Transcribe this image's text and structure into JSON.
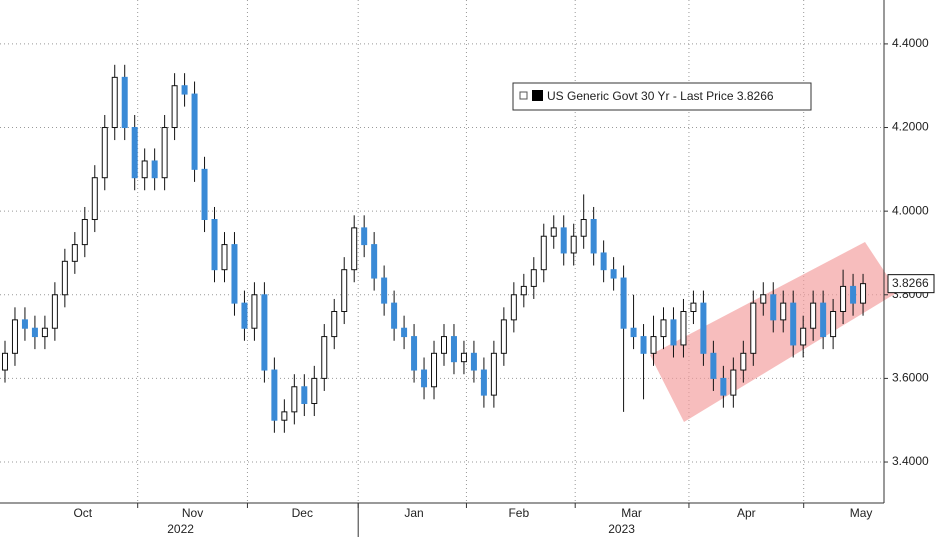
{
  "chart_data": {
    "type": "candlestick",
    "legend": "US Generic Govt 30 Yr - Last Price 3.8266",
    "last_price": 3.8266,
    "up_color": "#ffffff",
    "down_color": "#3a8ad6",
    "ylim": [
      3.302,
      4.505
    ],
    "yticks": [
      {
        "value": 3.4,
        "label": "3.4000"
      },
      {
        "value": 3.6,
        "label": "3.6000"
      },
      {
        "value": 3.8,
        "label": "3.8000"
      },
      {
        "value": 4.0,
        "label": "4.0000"
      },
      {
        "value": 4.2,
        "label": "4.2000"
      },
      {
        "value": 4.4,
        "label": "4.4000"
      }
    ],
    "xticks": [
      {
        "value": 7.8,
        "label": "Oct"
      },
      {
        "value": 18.8,
        "label": "Nov"
      },
      {
        "value": 29.8,
        "label": "Dec"
      },
      {
        "value": 41,
        "label": "Jan"
      },
      {
        "value": 51.5,
        "label": "Feb"
      },
      {
        "value": 62.8,
        "label": "Mar"
      },
      {
        "value": 74.3,
        "label": "Apr"
      },
      {
        "value": 85.8,
        "label": "May"
      }
    ],
    "year_labels": [
      {
        "value": 17.6,
        "label": "2022"
      },
      {
        "value": 61.8,
        "label": "2023"
      }
    ],
    "grid": true,
    "candles": [
      [
        3.62,
        3.69,
        3.59,
        3.66
      ],
      [
        3.66,
        3.77,
        3.63,
        3.74
      ],
      [
        3.74,
        3.77,
        3.69,
        3.72
      ],
      [
        3.72,
        3.75,
        3.67,
        3.7
      ],
      [
        3.7,
        3.75,
        3.67,
        3.72
      ],
      [
        3.72,
        3.83,
        3.69,
        3.8
      ],
      [
        3.8,
        3.91,
        3.77,
        3.88
      ],
      [
        3.88,
        3.95,
        3.85,
        3.92
      ],
      [
        3.92,
        4.01,
        3.89,
        3.98
      ],
      [
        3.98,
        4.11,
        3.95,
        4.08
      ],
      [
        4.08,
        4.23,
        4.05,
        4.2
      ],
      [
        4.2,
        4.35,
        4.17,
        4.32
      ],
      [
        4.32,
        4.35,
        4.17,
        4.2
      ],
      [
        4.2,
        4.23,
        4.05,
        4.08
      ],
      [
        4.08,
        4.15,
        4.05,
        4.12
      ],
      [
        4.12,
        4.15,
        4.05,
        4.08
      ],
      [
        4.08,
        4.23,
        4.05,
        4.2
      ],
      [
        4.2,
        4.33,
        4.17,
        4.3
      ],
      [
        4.3,
        4.33,
        4.25,
        4.28
      ],
      [
        4.28,
        4.31,
        4.07,
        4.1
      ],
      [
        4.1,
        4.13,
        3.95,
        3.98
      ],
      [
        3.98,
        4.01,
        3.83,
        3.86
      ],
      [
        3.86,
        3.95,
        3.83,
        3.92
      ],
      [
        3.92,
        3.95,
        3.75,
        3.78
      ],
      [
        3.78,
        3.81,
        3.69,
        3.72
      ],
      [
        3.72,
        3.83,
        3.69,
        3.8
      ],
      [
        3.8,
        3.83,
        3.59,
        3.62
      ],
      [
        3.62,
        3.65,
        3.47,
        3.5
      ],
      [
        3.5,
        3.55,
        3.47,
        3.52
      ],
      [
        3.52,
        3.61,
        3.49,
        3.58
      ],
      [
        3.58,
        3.61,
        3.51,
        3.54
      ],
      [
        3.54,
        3.63,
        3.51,
        3.6
      ],
      [
        3.6,
        3.73,
        3.57,
        3.7
      ],
      [
        3.7,
        3.79,
        3.67,
        3.76
      ],
      [
        3.76,
        3.89,
        3.73,
        3.86
      ],
      [
        3.86,
        3.99,
        3.83,
        3.96
      ],
      [
        3.96,
        3.99,
        3.89,
        3.92
      ],
      [
        3.92,
        3.95,
        3.81,
        3.84
      ],
      [
        3.84,
        3.87,
        3.75,
        3.78
      ],
      [
        3.78,
        3.81,
        3.69,
        3.72
      ],
      [
        3.72,
        3.75,
        3.67,
        3.7
      ],
      [
        3.7,
        3.73,
        3.59,
        3.62
      ],
      [
        3.62,
        3.65,
        3.55,
        3.58
      ],
      [
        3.58,
        3.69,
        3.55,
        3.66
      ],
      [
        3.66,
        3.73,
        3.63,
        3.7
      ],
      [
        3.7,
        3.73,
        3.61,
        3.64
      ],
      [
        3.64,
        3.69,
        3.61,
        3.66
      ],
      [
        3.66,
        3.69,
        3.59,
        3.62
      ],
      [
        3.62,
        3.65,
        3.53,
        3.56
      ],
      [
        3.56,
        3.69,
        3.53,
        3.66
      ],
      [
        3.66,
        3.77,
        3.63,
        3.74
      ],
      [
        3.74,
        3.83,
        3.71,
        3.8
      ],
      [
        3.8,
        3.85,
        3.77,
        3.82
      ],
      [
        3.82,
        3.89,
        3.79,
        3.86
      ],
      [
        3.86,
        3.97,
        3.83,
        3.94
      ],
      [
        3.94,
        3.99,
        3.91,
        3.96
      ],
      [
        3.96,
        3.99,
        3.87,
        3.9
      ],
      [
        3.9,
        3.97,
        3.87,
        3.94
      ],
      [
        3.94,
        4.04,
        3.91,
        3.98
      ],
      [
        3.98,
        4.01,
        3.87,
        3.9
      ],
      [
        3.9,
        3.93,
        3.83,
        3.86
      ],
      [
        3.86,
        3.89,
        3.81,
        3.84
      ],
      [
        3.84,
        3.87,
        3.52,
        3.72
      ],
      [
        3.72,
        3.8,
        3.67,
        3.7
      ],
      [
        3.7,
        3.73,
        3.55,
        3.66
      ],
      [
        3.66,
        3.75,
        3.63,
        3.7
      ],
      [
        3.7,
        3.77,
        3.67,
        3.74
      ],
      [
        3.74,
        3.77,
        3.65,
        3.68
      ],
      [
        3.68,
        3.79,
        3.65,
        3.76
      ],
      [
        3.76,
        3.81,
        3.73,
        3.78
      ],
      [
        3.78,
        3.81,
        3.63,
        3.66
      ],
      [
        3.66,
        3.69,
        3.57,
        3.6
      ],
      [
        3.6,
        3.63,
        3.53,
        3.56
      ],
      [
        3.56,
        3.65,
        3.53,
        3.62
      ],
      [
        3.62,
        3.69,
        3.59,
        3.66
      ],
      [
        3.66,
        3.81,
        3.63,
        3.78
      ],
      [
        3.78,
        3.83,
        3.75,
        3.8
      ],
      [
        3.8,
        3.83,
        3.71,
        3.74
      ],
      [
        3.74,
        3.81,
        3.71,
        3.78
      ],
      [
        3.78,
        3.81,
        3.65,
        3.68
      ],
      [
        3.68,
        3.75,
        3.65,
        3.72
      ],
      [
        3.72,
        3.81,
        3.69,
        3.78
      ],
      [
        3.78,
        3.81,
        3.67,
        3.7
      ],
      [
        3.7,
        3.79,
        3.67,
        3.76
      ],
      [
        3.76,
        3.86,
        3.73,
        3.82
      ],
      [
        3.82,
        3.85,
        3.75,
        3.78
      ],
      [
        3.78,
        3.85,
        3.75,
        3.8266
      ]
    ]
  }
}
